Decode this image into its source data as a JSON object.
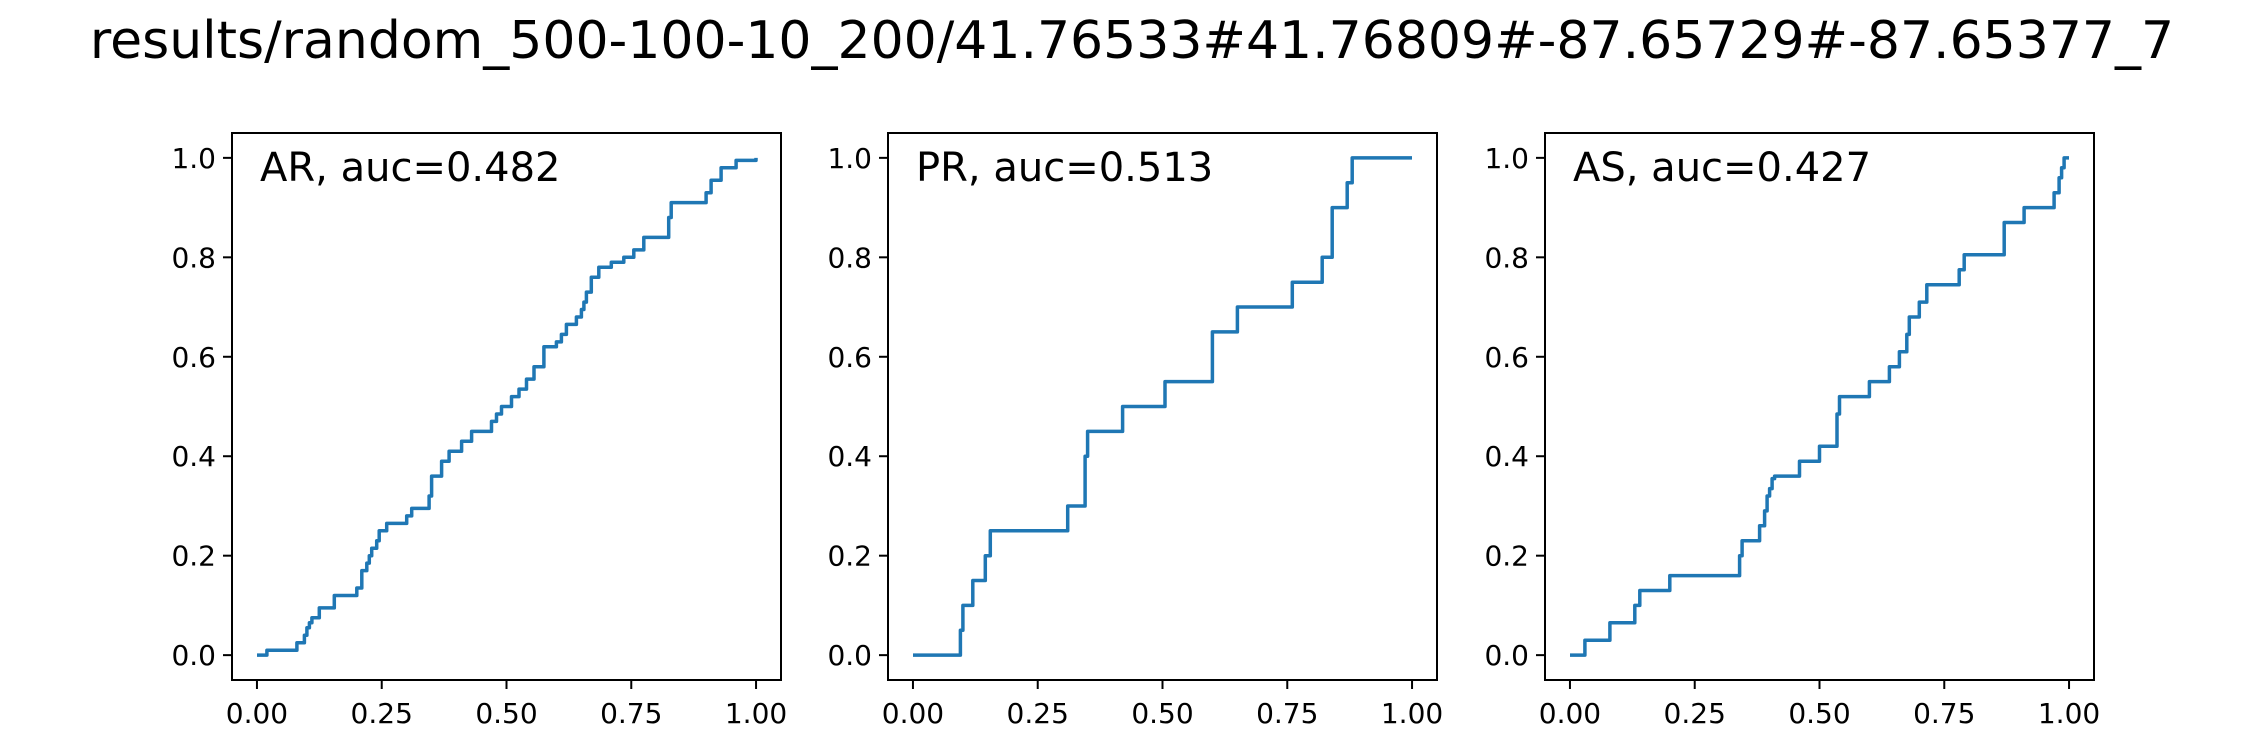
{
  "title": "results/random_500-100-10_200/41.76533#41.76809#-87.65729#-87.65377_7",
  "colors": {
    "line": "#1f77b4",
    "axes": "#000000",
    "background": "#ffffff"
  },
  "chart_data": [
    {
      "type": "line",
      "step": true,
      "label": "AR, auc=0.482",
      "xlim": [
        -0.05,
        1.05
      ],
      "ylim": [
        -0.05,
        1.05
      ],
      "xticks": [
        "0.00",
        "0.25",
        "0.50",
        "0.75",
        "1.00"
      ],
      "yticks": [
        "0.0",
        "0.2",
        "0.4",
        "0.6",
        "0.8",
        "1.0"
      ],
      "grid": false,
      "series": [
        {
          "x": [
            0.0,
            0.02,
            0.02,
            0.08,
            0.08,
            0.095,
            0.095,
            0.1,
            0.1,
            0.105,
            0.105,
            0.11,
            0.11,
            0.125,
            0.125,
            0.155,
            0.155,
            0.2,
            0.2,
            0.21,
            0.21,
            0.22,
            0.22,
            0.225,
            0.225,
            0.23,
            0.23,
            0.24,
            0.24,
            0.245,
            0.245,
            0.26,
            0.26,
            0.3,
            0.3,
            0.31,
            0.31,
            0.345,
            0.345,
            0.35,
            0.35,
            0.37,
            0.37,
            0.385,
            0.385,
            0.41,
            0.41,
            0.43,
            0.43,
            0.47,
            0.47,
            0.48,
            0.48,
            0.49,
            0.49,
            0.51,
            0.51,
            0.525,
            0.525,
            0.54,
            0.54,
            0.555,
            0.555,
            0.575,
            0.575,
            0.6,
            0.6,
            0.61,
            0.61,
            0.62,
            0.62,
            0.64,
            0.64,
            0.65,
            0.65,
            0.655,
            0.655,
            0.66,
            0.66,
            0.67,
            0.67,
            0.685,
            0.685,
            0.71,
            0.71,
            0.735,
            0.735,
            0.755,
            0.755,
            0.775,
            0.775,
            0.825,
            0.825,
            0.83,
            0.83,
            0.9,
            0.9,
            0.91,
            0.91,
            0.93,
            0.93,
            0.96,
            0.96,
            1.0,
            1.0
          ],
          "y": [
            0.0,
            0.0,
            0.01,
            0.01,
            0.025,
            0.025,
            0.04,
            0.04,
            0.055,
            0.055,
            0.065,
            0.065,
            0.075,
            0.075,
            0.095,
            0.095,
            0.12,
            0.12,
            0.135,
            0.135,
            0.17,
            0.17,
            0.185,
            0.185,
            0.2,
            0.2,
            0.215,
            0.215,
            0.23,
            0.23,
            0.25,
            0.25,
            0.265,
            0.265,
            0.28,
            0.28,
            0.295,
            0.295,
            0.32,
            0.32,
            0.36,
            0.36,
            0.39,
            0.39,
            0.41,
            0.41,
            0.43,
            0.43,
            0.45,
            0.45,
            0.47,
            0.47,
            0.485,
            0.485,
            0.5,
            0.5,
            0.52,
            0.52,
            0.535,
            0.535,
            0.555,
            0.555,
            0.58,
            0.58,
            0.62,
            0.62,
            0.63,
            0.63,
            0.645,
            0.645,
            0.665,
            0.665,
            0.68,
            0.68,
            0.695,
            0.695,
            0.71,
            0.71,
            0.73,
            0.73,
            0.76,
            0.76,
            0.78,
            0.78,
            0.79,
            0.79,
            0.8,
            0.8,
            0.815,
            0.815,
            0.84,
            0.84,
            0.88,
            0.88,
            0.91,
            0.91,
            0.93,
            0.93,
            0.955,
            0.955,
            0.98,
            0.98,
            0.995,
            0.995,
            1.0
          ]
        }
      ]
    },
    {
      "type": "line",
      "step": true,
      "label": "PR, auc=0.513",
      "xlim": [
        -0.05,
        1.05
      ],
      "ylim": [
        -0.05,
        1.05
      ],
      "xticks": [
        "0.00",
        "0.25",
        "0.50",
        "0.75",
        "1.00"
      ],
      "yticks": [
        "0.0",
        "0.2",
        "0.4",
        "0.6",
        "0.8",
        "1.0"
      ],
      "grid": false,
      "series": [
        {
          "x": [
            0.0,
            0.095,
            0.095,
            0.1,
            0.1,
            0.12,
            0.12,
            0.145,
            0.145,
            0.155,
            0.155,
            0.31,
            0.31,
            0.345,
            0.345,
            0.35,
            0.35,
            0.42,
            0.42,
            0.505,
            0.505,
            0.6,
            0.6,
            0.65,
            0.65,
            0.76,
            0.76,
            0.82,
            0.82,
            0.84,
            0.84,
            0.87,
            0.87,
            0.88,
            0.88,
            1.0
          ],
          "y": [
            0.0,
            0.0,
            0.05,
            0.05,
            0.1,
            0.1,
            0.15,
            0.15,
            0.2,
            0.2,
            0.25,
            0.25,
            0.3,
            0.3,
            0.4,
            0.4,
            0.45,
            0.45,
            0.5,
            0.5,
            0.55,
            0.55,
            0.65,
            0.65,
            0.7,
            0.7,
            0.75,
            0.75,
            0.8,
            0.8,
            0.9,
            0.9,
            0.95,
            0.95,
            1.0,
            1.0
          ]
        }
      ]
    },
    {
      "type": "line",
      "step": true,
      "label": "AS, auc=0.427",
      "xlim": [
        -0.05,
        1.05
      ],
      "ylim": [
        -0.05,
        1.05
      ],
      "xticks": [
        "0.00",
        "0.25",
        "0.50",
        "0.75",
        "1.00"
      ],
      "yticks": [
        "0.0",
        "0.2",
        "0.4",
        "0.6",
        "0.8",
        "1.0"
      ],
      "grid": false,
      "series": [
        {
          "x": [
            0.0,
            0.03,
            0.03,
            0.08,
            0.08,
            0.13,
            0.13,
            0.14,
            0.14,
            0.2,
            0.2,
            0.34,
            0.34,
            0.345,
            0.345,
            0.38,
            0.38,
            0.39,
            0.39,
            0.395,
            0.395,
            0.4,
            0.4,
            0.405,
            0.405,
            0.41,
            0.41,
            0.46,
            0.46,
            0.5,
            0.5,
            0.535,
            0.535,
            0.54,
            0.54,
            0.6,
            0.6,
            0.64,
            0.64,
            0.66,
            0.66,
            0.675,
            0.675,
            0.68,
            0.68,
            0.7,
            0.7,
            0.715,
            0.715,
            0.78,
            0.78,
            0.79,
            0.79,
            0.87,
            0.87,
            0.91,
            0.91,
            0.97,
            0.97,
            0.98,
            0.98,
            0.985,
            0.985,
            0.99,
            0.99,
            1.0
          ],
          "y": [
            0.0,
            0.0,
            0.03,
            0.03,
            0.065,
            0.065,
            0.1,
            0.1,
            0.13,
            0.13,
            0.16,
            0.16,
            0.2,
            0.2,
            0.23,
            0.23,
            0.26,
            0.26,
            0.29,
            0.29,
            0.32,
            0.32,
            0.335,
            0.335,
            0.355,
            0.355,
            0.36,
            0.36,
            0.39,
            0.39,
            0.42,
            0.42,
            0.485,
            0.485,
            0.52,
            0.52,
            0.55,
            0.55,
            0.58,
            0.58,
            0.61,
            0.61,
            0.645,
            0.645,
            0.68,
            0.68,
            0.71,
            0.71,
            0.745,
            0.745,
            0.775,
            0.775,
            0.805,
            0.805,
            0.87,
            0.87,
            0.9,
            0.9,
            0.93,
            0.93,
            0.96,
            0.96,
            0.98,
            0.98,
            1.0,
            1.0
          ]
        }
      ]
    }
  ]
}
